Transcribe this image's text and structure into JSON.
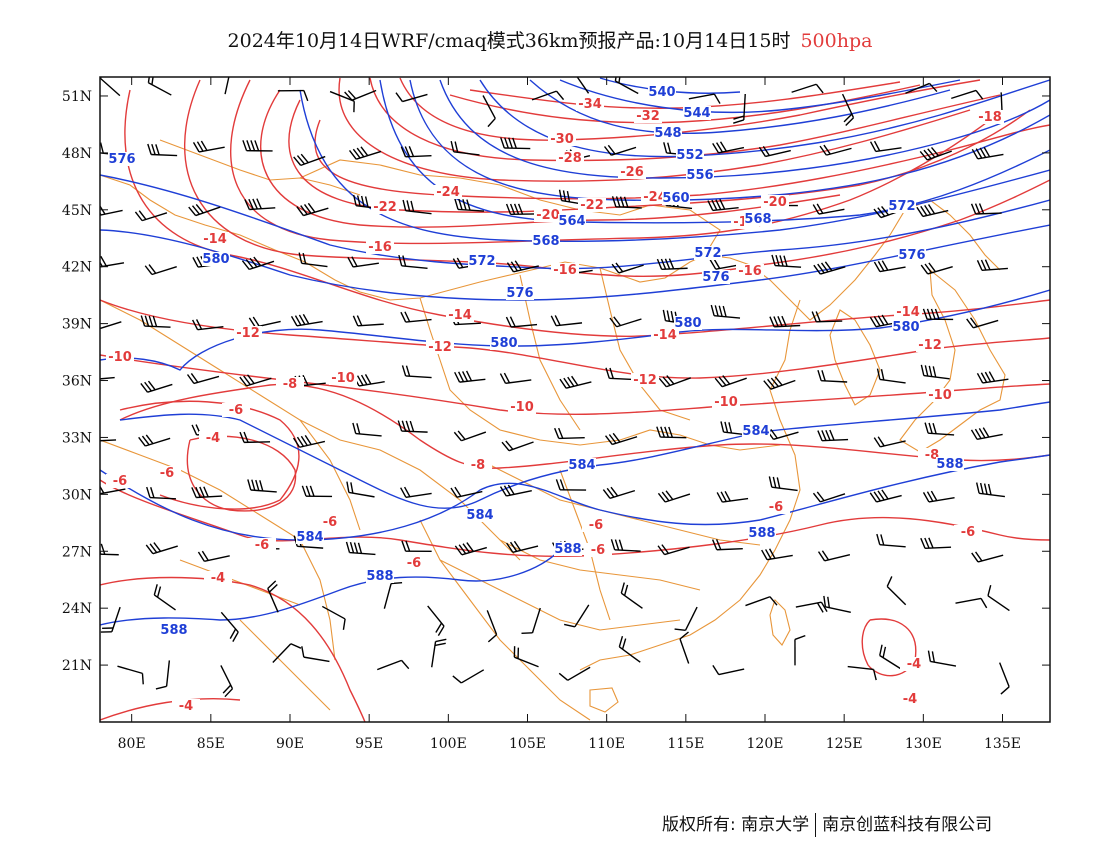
{
  "title": {
    "main": "2024年10月14日WRF/cmaq模式36km预报产品:10月14日15时",
    "level": "500hpa",
    "level_color": "#e23b3b"
  },
  "copyright": {
    "label": "版权所有:",
    "org1": "南京大学",
    "org2": "南京创蓝科技有限公司"
  },
  "map": {
    "lon_range": [
      78,
      138
    ],
    "lat_range": [
      18,
      52
    ],
    "lon_ticks": [
      "80E",
      "85E",
      "90E",
      "95E",
      "100E",
      "105E",
      "110E",
      "115E",
      "120E",
      "125E",
      "130E",
      "135E"
    ],
    "lat_ticks": [
      "51N",
      "48N",
      "45N",
      "42N",
      "39N",
      "36N",
      "33N",
      "30N",
      "27N",
      "24N",
      "21N"
    ],
    "colors": {
      "temperature": "#e23b3b",
      "geopotential": "#1f3fd6",
      "boundary": "#e8963a",
      "wind": "#000000"
    }
  },
  "contours": {
    "temperature": [
      {
        "value": "-34",
        "label": "-34"
      },
      {
        "value": "-32",
        "label": "-32"
      },
      {
        "value": "-30",
        "label": "-30"
      },
      {
        "value": "-28",
        "label": "-28"
      },
      {
        "value": "-26",
        "label": "-26"
      },
      {
        "value": "-24",
        "label": "-24"
      },
      {
        "value": "-22",
        "label": "-22"
      },
      {
        "value": "-20",
        "label": "-20"
      },
      {
        "value": "-18",
        "label": "-18"
      },
      {
        "value": "-16",
        "label": "-16"
      },
      {
        "value": "-14",
        "label": "-14"
      },
      {
        "value": "-12",
        "label": "-12"
      },
      {
        "value": "-10",
        "label": "-10"
      },
      {
        "value": "-8",
        "label": "-8"
      },
      {
        "value": "-6",
        "label": "-6"
      },
      {
        "value": "-4",
        "label": "-4"
      }
    ],
    "geopotential": [
      {
        "value": "540",
        "label": "540"
      },
      {
        "value": "544",
        "label": "544"
      },
      {
        "value": "548",
        "label": "548"
      },
      {
        "value": "552",
        "label": "552"
      },
      {
        "value": "556",
        "label": "556"
      },
      {
        "value": "560",
        "label": "560"
      },
      {
        "value": "564",
        "label": "564"
      },
      {
        "value": "568",
        "label": "568"
      },
      {
        "value": "572",
        "label": "572"
      },
      {
        "value": "576",
        "label": "576"
      },
      {
        "value": "580",
        "label": "580"
      },
      {
        "value": "584",
        "label": "584"
      },
      {
        "value": "588",
        "label": "588"
      }
    ]
  }
}
